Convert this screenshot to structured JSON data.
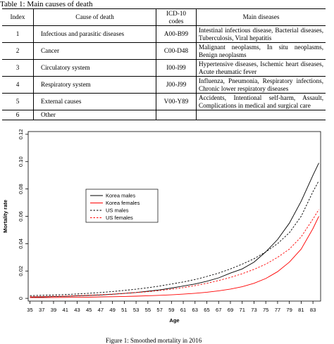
{
  "table": {
    "caption": "Table 1: Main causes of death",
    "headers": [
      "Index",
      "Cause of death",
      "ICD-10 codes",
      "Main diseases"
    ],
    "rows": [
      {
        "index": "1",
        "cause": "Infectious and parasitic diseases",
        "icd": "A00-B99",
        "diseases": "Intestinal infectious disease, Bacterial diseases, Tuberculosis, Viral hepatitis"
      },
      {
        "index": "2",
        "cause": "Cancer",
        "icd": "C00-D48",
        "diseases": "Malignant neoplasms, In situ neoplasms, Benign neoplasms"
      },
      {
        "index": "3",
        "cause": "Circulatory system",
        "icd": "I00-I99",
        "diseases": "Hypertensive diseases, Ischemic heart diseases, Acute rheumatic fever"
      },
      {
        "index": "4",
        "cause": "Respiratory system",
        "icd": "J00-J99",
        "diseases": "Influenza, Pneumonia, Respiratory infections, Chronic lower respiratory diseases"
      },
      {
        "index": "5",
        "cause": "External causes",
        "icd": "V00-Y89",
        "diseases": "Accidents, Intentional self-harm, Assault, Complications in medical and surgical care"
      },
      {
        "index": "6",
        "cause": "Other",
        "icd": "",
        "diseases": ""
      }
    ]
  },
  "figure": {
    "caption": "Figure 1: Smoothed mortality in 2016"
  },
  "chart_data": {
    "type": "line",
    "title": "",
    "xlabel": "Age",
    "ylabel": "Mortality rate",
    "xlim": [
      35,
      84
    ],
    "ylim": [
      0,
      0.12
    ],
    "x_ticks": [
      35,
      37,
      39,
      41,
      43,
      45,
      47,
      49,
      51,
      53,
      55,
      57,
      59,
      61,
      63,
      65,
      67,
      69,
      71,
      73,
      75,
      77,
      79,
      81,
      83
    ],
    "y_ticks": [
      0,
      0.02,
      0.04,
      0.06,
      0.08,
      0.1,
      0.12
    ],
    "y_tick_labels": [
      "0",
      "0.02",
      "0.04",
      "0.06",
      "0.08",
      "0.10",
      "0.12"
    ],
    "grid": false,
    "legend_position": "upper-left",
    "x": [
      35,
      37,
      39,
      41,
      43,
      45,
      47,
      49,
      51,
      53,
      55,
      57,
      59,
      61,
      63,
      65,
      67,
      69,
      71,
      73,
      75,
      77,
      79,
      81,
      83,
      84
    ],
    "series": [
      {
        "name": "Korea males",
        "color": "#000000",
        "dash": "solid",
        "values": [
          0.001,
          0.0011,
          0.0013,
          0.0015,
          0.0018,
          0.0021,
          0.0025,
          0.003,
          0.0036,
          0.0043,
          0.0052,
          0.0062,
          0.0075,
          0.009,
          0.0105,
          0.0125,
          0.015,
          0.0185,
          0.0215,
          0.0265,
          0.034,
          0.043,
          0.055,
          0.071,
          0.09,
          0.099
        ]
      },
      {
        "name": "Korea females",
        "color": "#ff0000",
        "dash": "solid",
        "values": [
          0.0005,
          0.0005,
          0.0006,
          0.0007,
          0.0008,
          0.0009,
          0.0011,
          0.0012,
          0.0014,
          0.0016,
          0.0019,
          0.0022,
          0.0026,
          0.0031,
          0.0037,
          0.0045,
          0.0055,
          0.0068,
          0.0085,
          0.011,
          0.0145,
          0.0195,
          0.0265,
          0.036,
          0.051,
          0.06
        ]
      },
      {
        "name": "US males",
        "color": "#000000",
        "dash": "dashed",
        "values": [
          0.002,
          0.0022,
          0.0025,
          0.0028,
          0.0032,
          0.0037,
          0.0043,
          0.005,
          0.0058,
          0.0067,
          0.0078,
          0.009,
          0.0105,
          0.012,
          0.0138,
          0.016,
          0.0185,
          0.0215,
          0.025,
          0.029,
          0.034,
          0.04,
          0.048,
          0.06,
          0.078,
          0.086
        ]
      },
      {
        "name": "US females",
        "color": "#ff0000",
        "dash": "dashed",
        "values": [
          0.0012,
          0.0013,
          0.0015,
          0.0017,
          0.002,
          0.0023,
          0.0027,
          0.0031,
          0.0036,
          0.0042,
          0.0049,
          0.0057,
          0.0067,
          0.0079,
          0.0093,
          0.011,
          0.013,
          0.0153,
          0.018,
          0.0212,
          0.025,
          0.03,
          0.036,
          0.045,
          0.058,
          0.065
        ]
      }
    ]
  }
}
